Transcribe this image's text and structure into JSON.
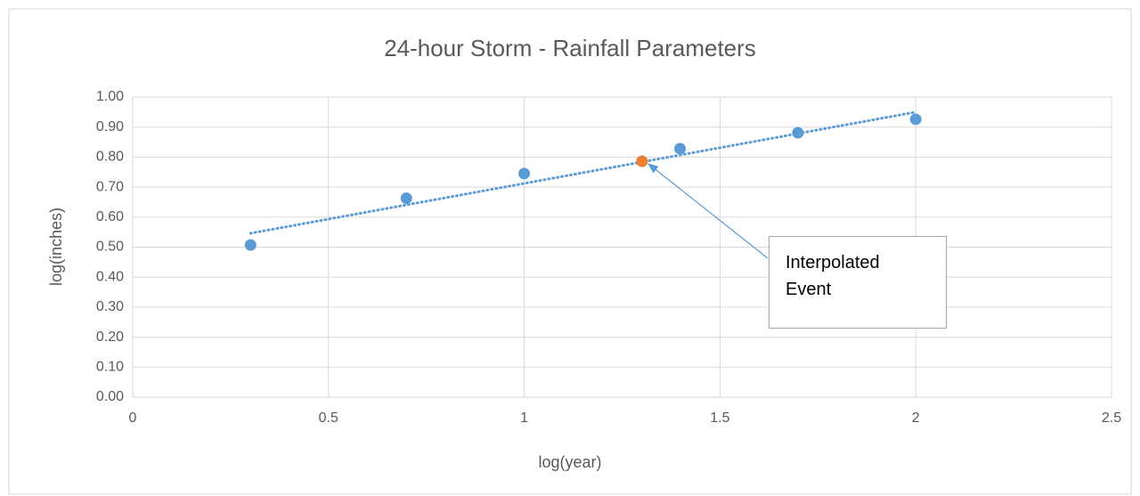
{
  "chart_data": {
    "type": "scatter",
    "title": "24-hour Storm - Rainfall Parameters",
    "x_label": "log(year)",
    "y_label": "log(inches)",
    "xlim": [
      0,
      2.5
    ],
    "xticks": [
      0,
      0.5,
      1,
      1.5,
      2,
      2.5
    ],
    "ylim": [
      0,
      1
    ],
    "yticks": [
      {
        "value": 0,
        "label": "0.00"
      },
      {
        "value": 0.1,
        "label": "0.10"
      },
      {
        "value": 0.2,
        "label": "0.20"
      },
      {
        "value": 0.3,
        "label": "0.30"
      },
      {
        "value": 0.4,
        "label": "0.40"
      },
      {
        "value": 0.5,
        "label": "0.50"
      },
      {
        "value": 0.6,
        "label": "0.60"
      },
      {
        "value": 0.7,
        "label": "0.70"
      },
      {
        "value": 0.8,
        "label": "0.80"
      },
      {
        "value": 0.9,
        "label": "0.90"
      },
      {
        "value": 1,
        "label": "1.00"
      }
    ],
    "grid": true,
    "series": [
      {
        "color": "#5b9bd5",
        "x": [
          0.301,
          0.699,
          1.0,
          1.398,
          1.699,
          2.0
        ],
        "values": [
          0.507,
          0.663,
          0.745,
          0.828,
          0.881,
          0.926
        ]
      },
      {
        "color": "#ed7d31",
        "x": [
          1.301
        ],
        "values": [
          0.786
        ]
      }
    ],
    "trendline": {
      "color": "#5b9bd5",
      "x": [
        0.301,
        2.0
      ],
      "values": [
        0.546,
        0.95
      ]
    },
    "annotation": "Interpolated Event"
  }
}
